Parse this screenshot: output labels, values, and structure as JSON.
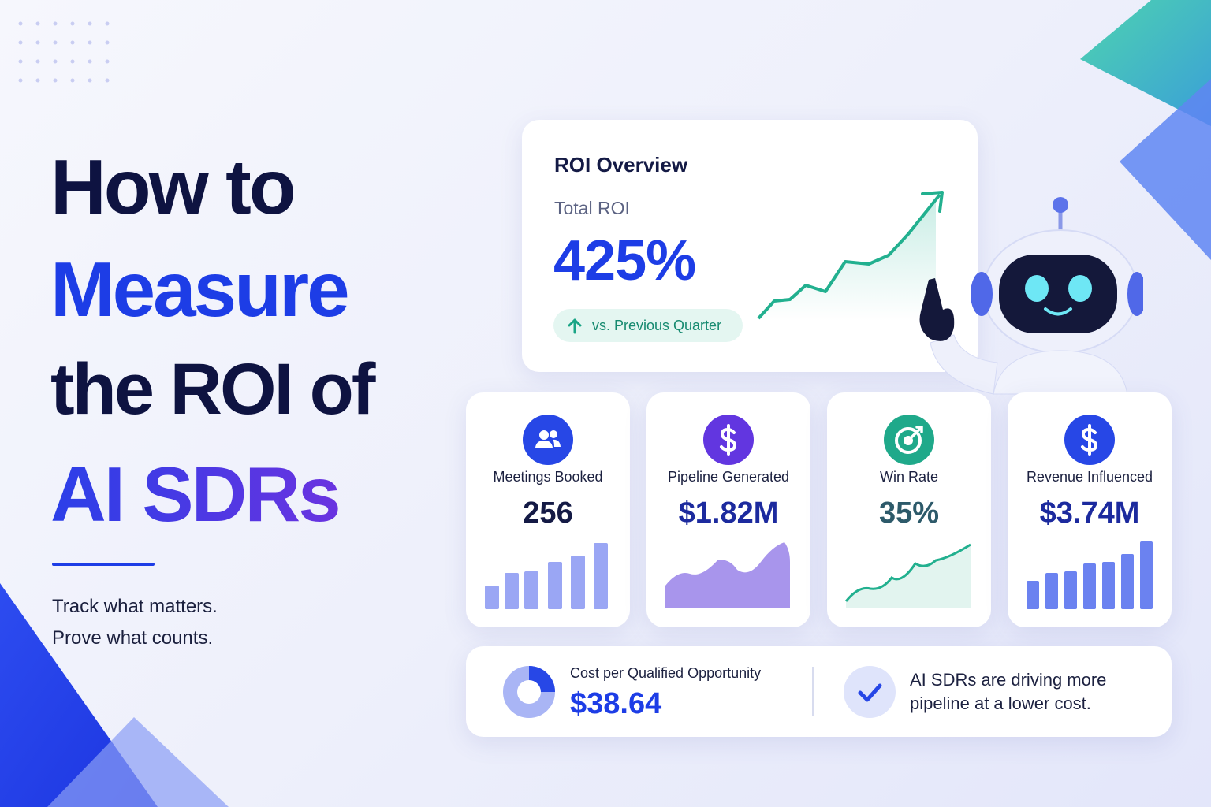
{
  "headline": {
    "lines": [
      "How to",
      "Measure",
      "the ROI of",
      "AI SDRs"
    ]
  },
  "tagline": {
    "lines": [
      "Track what matters.",
      "Prove what counts."
    ]
  },
  "roi_card": {
    "title": "ROI Overview",
    "label": "Total ROI",
    "value": "425%",
    "badge": "vs. Previous Quarter"
  },
  "metrics": [
    {
      "label": "Meetings Booked",
      "value": "256"
    },
    {
      "label": "Pipeline Generated",
      "value": "$1.82M"
    },
    {
      "label": "Win Rate",
      "value": "35%"
    },
    {
      "label": "Revenue Influenced",
      "value": "$3.74M"
    }
  ],
  "footer": {
    "cost_label": "Cost per Qualified Opportunity",
    "cost_value": "$38.64",
    "message_lines": [
      "AI SDRs are driving more",
      "pipeline at a lower cost."
    ]
  }
}
